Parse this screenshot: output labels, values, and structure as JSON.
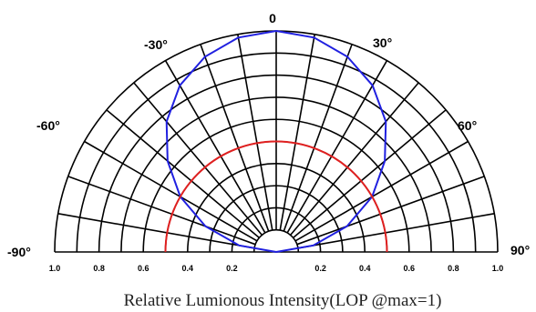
{
  "chart_data": {
    "type": "polar",
    "angular_axis": {
      "range_deg": [
        -90,
        90
      ],
      "grid_step_deg": 10,
      "labels": [
        {
          "angle": -90,
          "text": "-90°"
        },
        {
          "angle": -60,
          "text": "-60°"
        },
        {
          "angle": -30,
          "text": "-30°"
        },
        {
          "angle": 0,
          "text": "0"
        },
        {
          "angle": 30,
          "text": "30°"
        },
        {
          "angle": 60,
          "text": "60°"
        },
        {
          "angle": 90,
          "text": "90°"
        }
      ]
    },
    "radial_axis": {
      "range": [
        0,
        1.0
      ],
      "grid_step": 0.1,
      "tick_labels_left": [
        "1.0",
        "0.8",
        "0.6",
        "0.4",
        "0.2"
      ],
      "tick_labels_right": [
        "0.2",
        "0.4",
        "0.6",
        "0.8",
        "1.0"
      ],
      "tick_values_left": [
        1.0,
        0.8,
        0.6,
        0.4,
        0.2
      ],
      "tick_values_right": [
        0.2,
        0.4,
        0.6,
        0.8,
        1.0
      ]
    },
    "series": [
      {
        "color": "#2020e0",
        "angles_deg": [
          -90,
          -80,
          -70,
          -60,
          -50,
          -40,
          -30,
          -20,
          -10,
          0,
          10,
          20,
          30,
          40,
          50,
          60,
          70,
          80,
          90
        ],
        "values": [
          0.0,
          0.17,
          0.34,
          0.5,
          0.64,
          0.77,
          0.87,
          0.94,
          0.985,
          1.0,
          0.985,
          0.94,
          0.87,
          0.77,
          0.64,
          0.5,
          0.34,
          0.17,
          0.0
        ]
      },
      {
        "color": "#e02020",
        "angles_deg": [
          -90,
          -80,
          -70,
          -60,
          -50,
          -40,
          -30,
          -20,
          -10,
          0,
          10,
          20,
          30,
          40,
          50,
          60,
          70,
          80,
          90
        ],
        "values": [
          0.5,
          0.5,
          0.5,
          0.5,
          0.5,
          0.5,
          0.5,
          0.5,
          0.5,
          0.5,
          0.5,
          0.5,
          0.5,
          0.5,
          0.5,
          0.5,
          0.5,
          0.5,
          0.5
        ]
      }
    ],
    "caption": "Relative Lumionous Intensity(LOP @max=1)"
  }
}
